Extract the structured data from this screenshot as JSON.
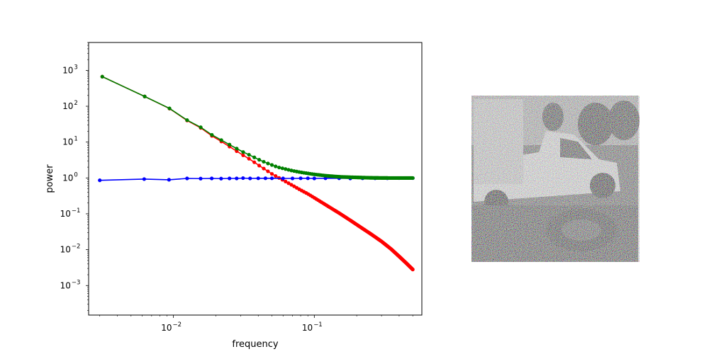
{
  "chart_data": {
    "type": "line",
    "title": "",
    "xlabel": "frequency",
    "ylabel": "power",
    "xscale": "log",
    "yscale": "log",
    "xlim": [
      0.0025,
      0.58
    ],
    "ylim": [
      0.00015,
      6000
    ],
    "grid": false,
    "legend": "none",
    "x_ticks": [
      {
        "value": 0.01,
        "base": "10",
        "exp": "−2"
      },
      {
        "value": 0.1,
        "base": "10",
        "exp": "−1"
      }
    ],
    "y_ticks": [
      {
        "value": 1000,
        "base": "10",
        "exp": "3"
      },
      {
        "value": 100,
        "base": "10",
        "exp": "2"
      },
      {
        "value": 10,
        "base": "10",
        "exp": "1"
      },
      {
        "value": 1,
        "base": "10",
        "exp": "0"
      },
      {
        "value": 0.1,
        "base": "10",
        "exp": "−1"
      },
      {
        "value": 0.01,
        "base": "10",
        "exp": "−2"
      },
      {
        "value": 0.001,
        "base": "10",
        "exp": "−3"
      }
    ],
    "series_colors": {
      "signal": "#ff0000",
      "noise": "#0000ff",
      "total": "#008000"
    },
    "series": [
      {
        "color": "#ff0000",
        "points": [
          [
            0.003,
            720
          ],
          [
            0.0062,
            190
          ],
          [
            0.0093,
            88
          ],
          [
            0.0125,
            40
          ],
          [
            0.0156,
            25
          ],
          [
            0.0187,
            15
          ],
          [
            0.0218,
            10.5
          ],
          [
            0.025,
            7.5
          ],
          [
            0.0281,
            5.6
          ],
          [
            0.0312,
            4.3
          ],
          [
            0.035,
            3.3
          ],
          [
            0.04,
            2.3
          ],
          [
            0.045,
            1.7
          ],
          [
            0.05,
            1.3
          ],
          [
            0.055,
            1.05
          ],
          [
            0.06,
            0.87
          ],
          [
            0.07,
            0.62
          ],
          [
            0.08,
            0.46
          ],
          [
            0.09,
            0.36
          ],
          [
            0.1,
            0.28
          ],
          [
            0.12,
            0.18
          ],
          [
            0.15,
            0.105
          ],
          [
            0.18,
            0.066
          ],
          [
            0.21,
            0.044
          ],
          [
            0.25,
            0.028
          ],
          [
            0.3,
            0.017
          ],
          [
            0.35,
            0.0105
          ],
          [
            0.4,
            0.0065
          ],
          [
            0.45,
            0.0042
          ],
          [
            0.5,
            0.0028
          ]
        ]
      },
      {
        "color": "#0000ff",
        "points": [
          [
            0.003,
            0.86
          ],
          [
            0.0062,
            0.93
          ],
          [
            0.0093,
            0.89
          ],
          [
            0.0125,
            0.97
          ],
          [
            0.0156,
            0.96
          ],
          [
            0.0187,
            0.97
          ],
          [
            0.0218,
            0.96
          ],
          [
            0.025,
            0.97
          ],
          [
            0.0281,
            0.97
          ],
          [
            0.0312,
            0.99
          ],
          [
            0.035,
            0.97
          ],
          [
            0.04,
            0.98
          ],
          [
            0.045,
            0.98
          ],
          [
            0.05,
            0.98
          ],
          [
            0.06,
            0.97
          ],
          [
            0.07,
            0.97
          ],
          [
            0.08,
            0.98
          ],
          [
            0.09,
            0.98
          ],
          [
            0.1,
            0.97
          ],
          [
            0.12,
            0.98
          ],
          [
            0.15,
            0.98
          ],
          [
            0.18,
            0.97
          ],
          [
            0.22,
            0.98
          ],
          [
            0.27,
            0.98
          ],
          [
            0.33,
            0.98
          ],
          [
            0.4,
            0.99
          ],
          [
            0.5,
            0.99
          ]
        ]
      },
      {
        "color": "#008000",
        "points": [
          [
            0.003,
            720
          ],
          [
            0.0062,
            190
          ],
          [
            0.0093,
            89
          ],
          [
            0.0125,
            41
          ],
          [
            0.0156,
            26
          ],
          [
            0.0187,
            16
          ],
          [
            0.0218,
            11.5
          ],
          [
            0.025,
            8.5
          ],
          [
            0.0281,
            6.6
          ],
          [
            0.0312,
            5.3
          ],
          [
            0.035,
            4.3
          ],
          [
            0.04,
            3.3
          ],
          [
            0.045,
            2.7
          ],
          [
            0.05,
            2.3
          ],
          [
            0.055,
            2.0
          ],
          [
            0.06,
            1.84
          ],
          [
            0.07,
            1.59
          ],
          [
            0.08,
            1.44
          ],
          [
            0.09,
            1.34
          ],
          [
            0.1,
            1.26
          ],
          [
            0.12,
            1.16
          ],
          [
            0.15,
            1.08
          ],
          [
            0.18,
            1.05
          ],
          [
            0.21,
            1.03
          ],
          [
            0.25,
            1.01
          ],
          [
            0.3,
            1.0
          ],
          [
            0.35,
            0.995
          ],
          [
            0.4,
            0.995
          ],
          [
            0.45,
            0.995
          ],
          [
            0.5,
            0.995
          ]
        ]
      }
    ]
  },
  "noisy_image": {
    "description_icon": "noisy-photo-icon"
  }
}
